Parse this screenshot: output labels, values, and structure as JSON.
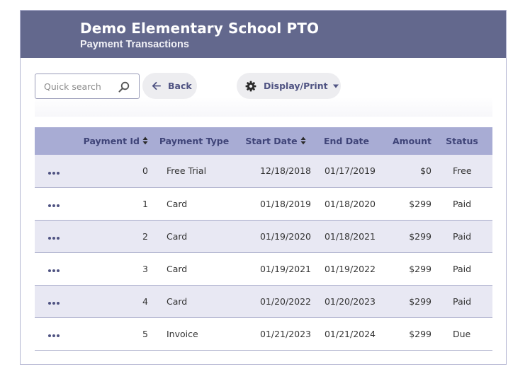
{
  "header": {
    "title": "Demo Elementary School PTO",
    "subtitle": "Payment Transactions"
  },
  "toolbar": {
    "search_placeholder": "Quick search",
    "back_label": "Back",
    "display_label": "Display/Print"
  },
  "table": {
    "columns": [
      "Payment Id",
      "Payment Type",
      "Start Date",
      "End Date",
      "Amount",
      "Status"
    ],
    "sortable_columns": [
      "Payment Id",
      "Start Date"
    ],
    "rows": [
      {
        "id": "0",
        "type": "Free Trial",
        "start": "12/18/2018",
        "end": "01/17/2019",
        "amount": "$0",
        "status": "Free"
      },
      {
        "id": "1",
        "type": "Card",
        "start": "01/18/2019",
        "end": "01/18/2020",
        "amount": "$299",
        "status": "Paid"
      },
      {
        "id": "2",
        "type": "Card",
        "start": "01/19/2020",
        "end": "01/18/2021",
        "amount": "$299",
        "status": "Paid"
      },
      {
        "id": "3",
        "type": "Card",
        "start": "01/19/2021",
        "end": "01/19/2022",
        "amount": "$299",
        "status": "Paid"
      },
      {
        "id": "4",
        "type": "Card",
        "start": "01/20/2022",
        "end": "01/20/2023",
        "amount": "$299",
        "status": "Paid"
      },
      {
        "id": "5",
        "type": "Invoice",
        "start": "01/21/2023",
        "end": "01/21/2024",
        "amount": "$299",
        "status": "Due"
      }
    ]
  },
  "icons": {
    "search": "search-icon",
    "back": "arrow-left-icon",
    "display": "gear-icon",
    "dropdown": "caret-down-icon",
    "row_menu": "ellipsis-icon",
    "sort": "sort-icon"
  },
  "colors": {
    "header_bg": "#63688d",
    "table_header_bg": "#a8acd4",
    "row_stripe": "#e8e8f3",
    "accent_text": "#4f5382"
  }
}
